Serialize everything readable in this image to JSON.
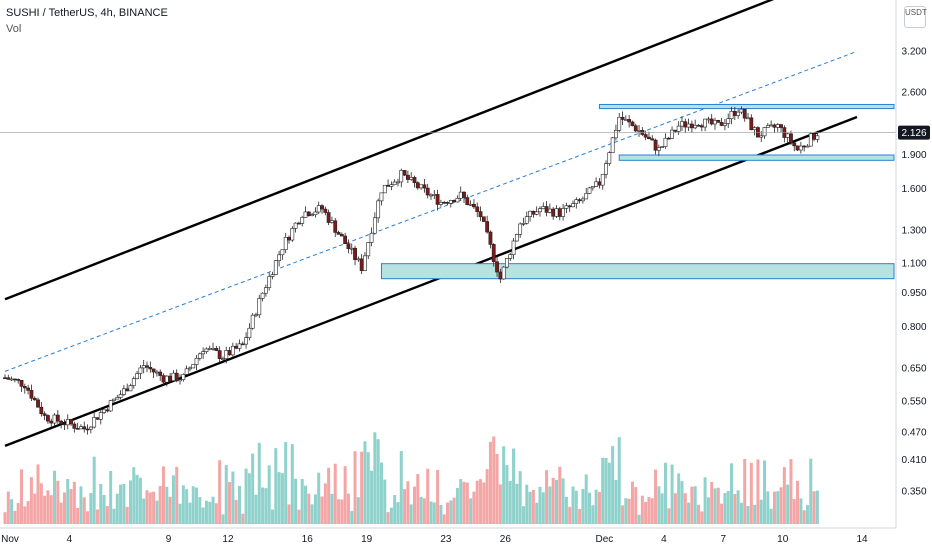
{
  "header": {
    "symbol_line": "SUSHI / TetherUS, 4h, BINANCE",
    "volume_label": "Vol",
    "currency_badge": "USDT"
  },
  "price_axis": {
    "ticks": [
      "3.200",
      "2.600",
      "2.126",
      "1.900",
      "1.600",
      "1.300",
      "1.100",
      "0.950",
      "0.800",
      "0.650",
      "0.550",
      "0.470",
      "0.410",
      "0.350"
    ],
    "current_price": "2.126"
  },
  "time_axis": {
    "labels": [
      "Nov",
      "4",
      "9",
      "12",
      "16",
      "19",
      "23",
      "26",
      "Dec",
      "4",
      "7",
      "10",
      "14"
    ]
  },
  "colors": {
    "bull": "#ffffff",
    "bear": "#7b1a1a",
    "wick": "#222222",
    "vol_up": "#8fd1cb",
    "vol_down": "#f4a5a5",
    "channel_line": "#000000",
    "mid_line": "#2a7fd4",
    "zone_fill": "#b6e3e0",
    "zone_border": "#2a7fd4",
    "price_line": "#999999",
    "price_label_bg": "#131722"
  },
  "chart_data": {
    "type": "candlestick",
    "title": "SUSHI / TetherUS, 4h, BINANCE",
    "scale": "log",
    "y_range": [
      0.3,
      4.0
    ],
    "price_ticks": [
      3.2,
      2.6,
      1.9,
      1.6,
      1.3,
      1.1,
      0.95,
      0.8,
      0.65,
      0.55,
      0.47,
      0.41,
      0.35
    ],
    "current_price": 2.126,
    "x_range": [
      "Nov 1",
      "Dec 14"
    ],
    "key_points": [
      {
        "date": "Nov 1",
        "close": 0.62
      },
      {
        "date": "Nov 2",
        "close": 0.6
      },
      {
        "date": "Nov 3",
        "close": 0.51
      },
      {
        "date": "Nov 5",
        "close": 0.48
      },
      {
        "date": "Nov 7",
        "close": 0.58
      },
      {
        "date": "Nov 8",
        "close": 0.66
      },
      {
        "date": "Nov 9",
        "close": 0.62
      },
      {
        "date": "Nov 10",
        "close": 0.62
      },
      {
        "date": "Nov 11",
        "close": 0.72
      },
      {
        "date": "Nov 12",
        "close": 0.69
      },
      {
        "date": "Nov 13",
        "close": 0.73
      },
      {
        "date": "Nov 14",
        "close": 0.95
      },
      {
        "date": "Nov 15",
        "close": 1.2
      },
      {
        "date": "Nov 16",
        "close": 1.42
      },
      {
        "date": "Nov 17",
        "close": 1.45
      },
      {
        "date": "Nov 18",
        "close": 1.25
      },
      {
        "date": "Nov 19",
        "close": 1.08
      },
      {
        "date": "Nov 20",
        "close": 1.6
      },
      {
        "date": "Nov 21",
        "close": 1.72
      },
      {
        "date": "Nov 22",
        "close": 1.6
      },
      {
        "date": "Nov 23",
        "close": 1.5
      },
      {
        "date": "Nov 24",
        "close": 1.55
      },
      {
        "date": "Nov 25",
        "close": 1.4
      },
      {
        "date": "Nov 26",
        "close": 1.02
      },
      {
        "date": "Nov 27",
        "close": 1.35
      },
      {
        "date": "Nov 28",
        "close": 1.45
      },
      {
        "date": "Nov 29",
        "close": 1.42
      },
      {
        "date": "Nov 30",
        "close": 1.5
      },
      {
        "date": "Dec 1",
        "close": 1.65
      },
      {
        "date": "Dec 2",
        "close": 2.3
      },
      {
        "date": "Dec 3",
        "close": 2.15
      },
      {
        "date": "Dec 4",
        "close": 1.95
      },
      {
        "date": "Dec 5",
        "close": 2.2
      },
      {
        "date": "Dec 6",
        "close": 2.25
      },
      {
        "date": "Dec 7",
        "close": 2.2
      },
      {
        "date": "Dec 8",
        "close": 2.4
      },
      {
        "date": "Dec 9",
        "close": 2.1
      },
      {
        "date": "Dec 10",
        "close": 2.2
      },
      {
        "date": "Dec 11",
        "close": 1.95
      },
      {
        "date": "Dec 12",
        "close": 2.126
      }
    ],
    "annotations": {
      "channel_upper": [
        {
          "date": "Nov 1",
          "price": 0.92
        },
        {
          "date": "Dec 10",
          "price": 4.2
        }
      ],
      "channel_lower": [
        {
          "date": "Nov 1",
          "price": 0.44
        },
        {
          "date": "Dec 14",
          "price": 2.3
        }
      ],
      "channel_mid": [
        {
          "date": "Nov 1",
          "price": 0.64
        },
        {
          "date": "Dec 14",
          "price": 3.2
        }
      ],
      "support_zone": {
        "from": "Nov 20",
        "to": "Dec 14",
        "low": 1.02,
        "high": 1.1
      },
      "resistance_zone": {
        "from": "Dec 1",
        "to": "Dec 14",
        "low": 2.4,
        "high": 2.45
      },
      "support_zone_2": {
        "from": "Dec 2",
        "to": "Dec 14",
        "low": 1.85,
        "high": 1.9
      }
    }
  }
}
